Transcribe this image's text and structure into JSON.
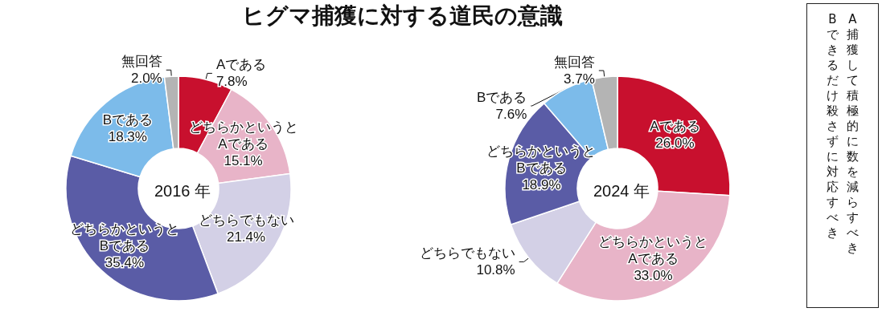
{
  "chart_data": [
    {
      "type": "donut",
      "title": "ヒグマ捕獲に対する道民の意識",
      "annotations": [
        "2016 年"
      ],
      "categories": [
        "Aである",
        "どちらかというとAである",
        "どちらでもない",
        "どちらかというとBである",
        "Bである",
        "無回答"
      ],
      "values": [
        7.8,
        15.1,
        21.4,
        35.4,
        18.3,
        2.0
      ],
      "value_labels": [
        "7.8%",
        "15.1%",
        "21.4%",
        "35.4%",
        "18.3%",
        "2.0%"
      ],
      "colors": [
        "#c8102e",
        "#e8b4c8",
        "#d3d0e6",
        "#5a5ca6",
        "#7cbbea",
        "#b4b4b4"
      ],
      "legend": false
    },
    {
      "type": "donut",
      "annotations": [
        "2024 年"
      ],
      "categories": [
        "Aである",
        "どちらかというとAである",
        "どちらでもない",
        "どちらかというとBである",
        "Bである",
        "無回答"
      ],
      "values": [
        26.0,
        33.0,
        10.8,
        18.9,
        7.6,
        3.7
      ],
      "value_labels": [
        "26.0%",
        "33.0%",
        "10.8%",
        "18.9%",
        "7.6%",
        "3.7%"
      ],
      "colors": [
        "#c8102e",
        "#e8b4c8",
        "#d3d0e6",
        "#5a5ca6",
        "#7cbbea",
        "#b4b4b4"
      ],
      "legend": false
    },
    {
      "type": "other",
      "annotations": [
        "A 捕獲して積極的に数を減らすべき",
        "B できるだけ殺さずに対応すべき"
      ]
    }
  ]
}
